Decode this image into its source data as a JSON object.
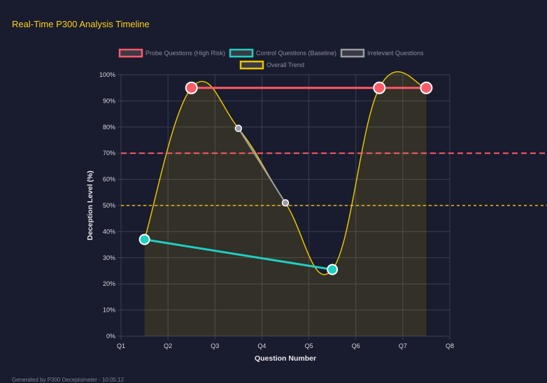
{
  "title": "Real-Time P300 Analysis Timeline",
  "footer": "Generated by P300 Deceptometer · 10:05:12",
  "chart_data": {
    "type": "line",
    "xlabel": "Question Number",
    "ylabel": "Deception Level (%)",
    "x_tick_labels": [
      "Q1",
      "Q2",
      "Q3",
      "Q4",
      "Q5",
      "Q6",
      "Q7",
      "Q8"
    ],
    "y_tick_labels": [
      "0%",
      "10%",
      "20%",
      "30%",
      "40%",
      "50%",
      "60%",
      "70%",
      "80%",
      "90%",
      "100%"
    ],
    "ylim": [
      0,
      100
    ],
    "grid": true,
    "legend_position": "top",
    "series": [
      {
        "name": "Probe Questions (High Risk)",
        "color": "#ff5a67",
        "x": [
          2.5,
          6.5,
          7.5
        ],
        "values": [
          95,
          95,
          95
        ]
      },
      {
        "name": "Control Questions (Baseline)",
        "color": "#1fcfc0",
        "x": [
          1.5,
          5.5
        ],
        "values": [
          37,
          25.5
        ]
      },
      {
        "name": "Irrelevant Questions",
        "color": "#9a9ca6",
        "x": [
          3.5,
          4.5
        ],
        "values": [
          79.5,
          51
        ]
      },
      {
        "name": "Overall Trend",
        "color": "#e8c400",
        "x": [
          1.5,
          2.5,
          3.5,
          4.5,
          5.5,
          6.5,
          7.5
        ],
        "values": [
          37,
          95,
          79.5,
          51,
          25.5,
          95,
          95
        ],
        "smooth": true,
        "filled": true
      }
    ],
    "thresholds": [
      {
        "value": 70,
        "color": "#ff5a67",
        "style": "dashed"
      },
      {
        "value": 50,
        "color": "#e8c400",
        "style": "dotted"
      }
    ]
  }
}
